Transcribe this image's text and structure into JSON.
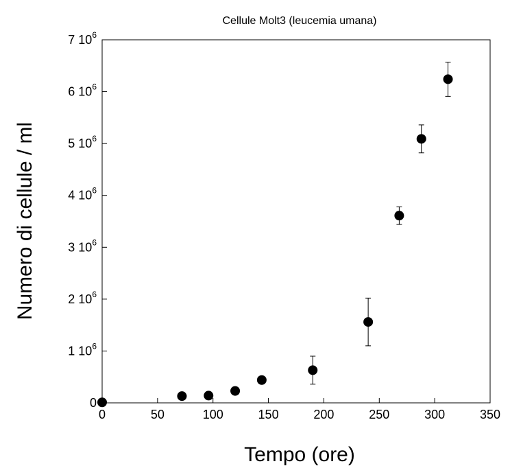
{
  "chart_data": {
    "type": "scatter",
    "title": "Cellule Molt3 (leucemia umana)",
    "xlabel": "Tempo (ore)",
    "ylabel": "Numero di cellule / ml",
    "xlim": [
      0,
      350
    ],
    "ylim": [
      0,
      7000000
    ],
    "x_ticks": [
      0,
      50,
      100,
      150,
      200,
      250,
      300,
      350
    ],
    "x_tick_labels": [
      "0",
      "50",
      "100",
      "150",
      "200",
      "250",
      "300",
      "350"
    ],
    "y_ticks": [
      0,
      1000000,
      2000000,
      3000000,
      4000000,
      5000000,
      6000000,
      7000000
    ],
    "y_tick_labels": [
      {
        "base": "0",
        "exp": ""
      },
      {
        "base": "1 10",
        "exp": "6"
      },
      {
        "base": "2 10",
        "exp": "6"
      },
      {
        "base": "3 10",
        "exp": "6"
      },
      {
        "base": "4 10",
        "exp": "6"
      },
      {
        "base": "5 10",
        "exp": "6"
      },
      {
        "base": "6 10",
        "exp": "6"
      },
      {
        "base": "7 10",
        "exp": "6"
      }
    ],
    "grid": false,
    "marker_color": "#000000",
    "points": [
      {
        "x": 0,
        "y": 10000,
        "err": 0
      },
      {
        "x": 72,
        "y": 130000,
        "err": 0
      },
      {
        "x": 96,
        "y": 140000,
        "err": 0
      },
      {
        "x": 120,
        "y": 230000,
        "err": 70000
      },
      {
        "x": 144,
        "y": 440000,
        "err": 0
      },
      {
        "x": 190,
        "y": 630000,
        "err": 270000
      },
      {
        "x": 240,
        "y": 1560000,
        "err": 460000
      },
      {
        "x": 268,
        "y": 3610000,
        "err": 170000
      },
      {
        "x": 288,
        "y": 5090000,
        "err": 270000
      },
      {
        "x": 312,
        "y": 6240000,
        "err": 330000
      }
    ]
  }
}
